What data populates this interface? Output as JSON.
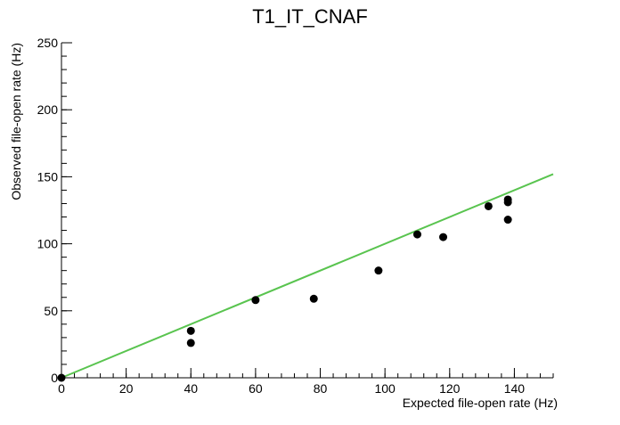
{
  "chart_data": {
    "type": "scatter",
    "title": "T1_IT_CNAF",
    "xlabel": "Expected file-open rate (Hz)",
    "ylabel": "Observed file-open rate (Hz)",
    "xlim": [
      0,
      152
    ],
    "ylim": [
      0,
      250
    ],
    "x_ticks": [
      0,
      20,
      40,
      60,
      80,
      100,
      120,
      140
    ],
    "y_ticks": [
      0,
      50,
      100,
      150,
      200,
      250
    ],
    "x_minor_step": 4,
    "y_minor_step": 10,
    "grid": false,
    "legend": "none",
    "points": [
      {
        "x": 0,
        "y": 0
      },
      {
        "x": 40,
        "y": 35
      },
      {
        "x": 40,
        "y": 26
      },
      {
        "x": 60,
        "y": 58
      },
      {
        "x": 78,
        "y": 59
      },
      {
        "x": 98,
        "y": 80
      },
      {
        "x": 110,
        "y": 107
      },
      {
        "x": 118,
        "y": 105
      },
      {
        "x": 132,
        "y": 128
      },
      {
        "x": 138,
        "y": 133
      },
      {
        "x": 138,
        "y": 131
      },
      {
        "x": 138,
        "y": 118
      }
    ],
    "reference_line": {
      "x": [
        0,
        152
      ],
      "y": [
        0,
        152
      ]
    },
    "colors": {
      "points": "#000000",
      "reference_line": "#59c44f",
      "axes": "#000000"
    }
  }
}
